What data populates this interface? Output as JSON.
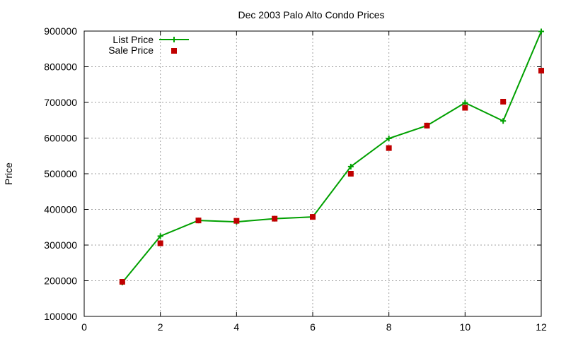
{
  "chart_data": {
    "type": "line",
    "title": "Dec 2003 Palo Alto Condo Prices",
    "xlabel": "",
    "ylabel": "Price",
    "xlim": [
      0,
      12
    ],
    "ylim": [
      100000,
      900000
    ],
    "xticks": [
      0,
      2,
      4,
      6,
      8,
      10,
      12
    ],
    "yticks": [
      100000,
      200000,
      300000,
      400000,
      500000,
      600000,
      700000,
      800000,
      900000
    ],
    "xtick_labels": [
      "0",
      "2",
      "4",
      "6",
      "8",
      "10",
      "12"
    ],
    "ytick_labels": [
      "100000",
      "200000",
      "300000",
      "400000",
      "500000",
      "600000",
      "700000",
      "800000",
      "900000"
    ],
    "grid": true,
    "legend_position": "top-left",
    "series": [
      {
        "name": "List Price",
        "style": "linespoints",
        "marker": "plus",
        "color": "#00a000",
        "x": [
          1,
          2,
          3,
          4,
          5,
          6,
          7,
          8,
          9,
          10,
          11,
          12
        ],
        "values": [
          195000,
          325000,
          369000,
          365000,
          374000,
          379000,
          520000,
          599000,
          635000,
          699000,
          648000,
          899000
        ]
      },
      {
        "name": "Sale Price",
        "style": "points",
        "marker": "square",
        "color": "#c00000",
        "x": [
          1,
          2,
          3,
          4,
          5,
          6,
          7,
          8,
          9,
          10,
          11,
          12
        ],
        "values": [
          197000,
          305000,
          369000,
          368000,
          374000,
          379000,
          500000,
          572000,
          635000,
          685000,
          702000,
          789000
        ]
      }
    ]
  }
}
